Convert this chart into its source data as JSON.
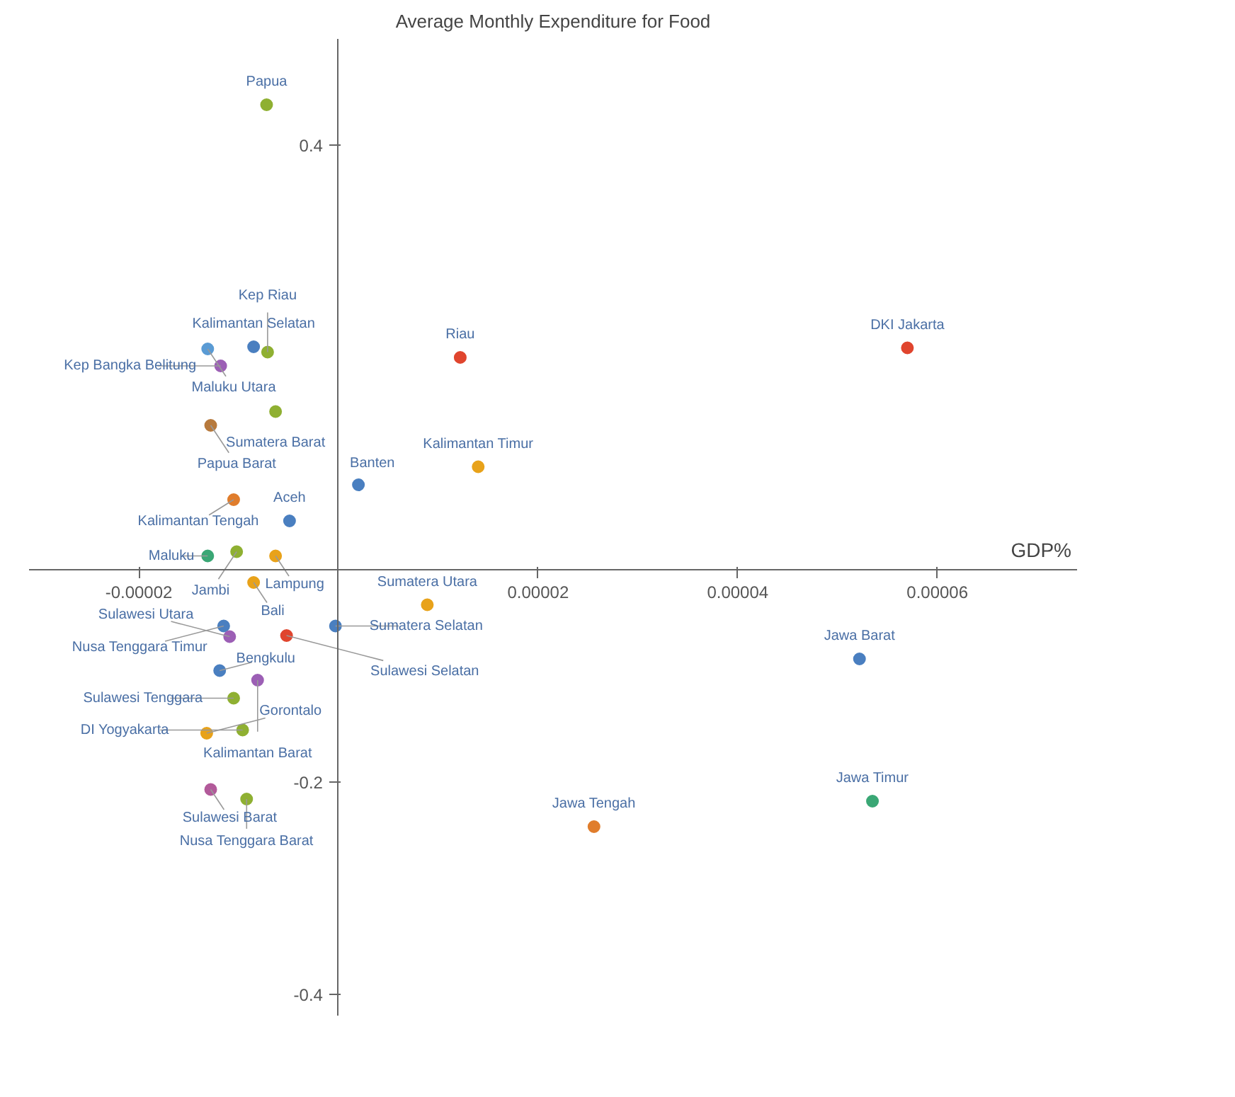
{
  "chart_data": {
    "type": "scatter",
    "title": "Average Monthly Expenditure for Food",
    "xlabel": "GDP%",
    "x": [
      -7.2e-06,
      5.7e-05,
      1.22e-05,
      1.4e-05,
      -8.5e-06,
      -1.31e-05,
      -7.1e-06,
      -1.18e-05,
      -6.3e-06,
      -1.28e-05,
      -1.05e-05,
      2e-06,
      -4.9e-06,
      -1.02e-05,
      -1.31e-05,
      -6.3e-06,
      -8.5e-06,
      8.9e-06,
      -3e-07,
      -5.2e-06,
      -1.15e-05,
      -1.09e-05,
      -8.1e-06,
      -1.19e-05,
      -1.05e-05,
      -9.6e-06,
      -1.32e-05,
      -1.28e-05,
      -9.2e-06,
      2.56e-05,
      5.35e-05,
      5.22e-05
    ],
    "values": [
      0.438,
      0.209,
      0.2,
      0.097,
      0.21,
      0.208,
      0.205,
      0.192,
      0.149,
      0.136,
      0.066,
      0.08,
      0.046,
      0.017,
      0.013,
      0.013,
      -0.012,
      -0.033,
      -0.053,
      -0.062,
      -0.053,
      -0.063,
      -0.104,
      -0.095,
      -0.121,
      -0.151,
      -0.154,
      -0.207,
      -0.216,
      -0.242,
      -0.218,
      -0.084
    ],
    "colors": [
      "#8fb032",
      "#e0452e",
      "#e0452e",
      "#e8a21a",
      "#4a7fc0",
      "#5a9bd4",
      "#8fb032",
      "#9c5fb5",
      "#8fb032",
      "#b77a3d",
      "#e07d2c",
      "#4a7fc0",
      "#4a7fc0",
      "#8fb032",
      "#3aa775",
      "#e8a21a",
      "#e8a21a",
      "#e8a21a",
      "#4a7fc0",
      "#e0452e",
      "#4a7fc0",
      "#9c5fb5",
      "#9c5fb5",
      "#4a7fc0",
      "#8fb032",
      "#8fb032",
      "#e8a21a",
      "#b25a9a",
      "#8fb032",
      "#e07d2c",
      "#3aa775",
      "#4a7fc0"
    ],
    "annotations": [
      {
        "text": "Papua",
        "x": -7.2e-06,
        "y": 0.438
      },
      {
        "text": "DKI Jakarta",
        "x": 5.7e-05,
        "y": 0.209
      },
      {
        "text": "Riau",
        "x": 1.22e-05,
        "y": 0.2
      },
      {
        "text": "Kalimantan Timur",
        "x": 1.4e-05,
        "y": 0.097
      },
      {
        "text": "Kalimantan Selatan",
        "x": -8.5e-06,
        "y": 0.21
      },
      {
        "text": "Maluku Utara",
        "x": -1.31e-05,
        "y": 0.208
      },
      {
        "text": "Kep Riau",
        "x": -7.1e-06,
        "y": 0.205
      },
      {
        "text": "Kep Bangka Belitung",
        "x": -1.18e-05,
        "y": 0.192
      },
      {
        "text": "Sumatera Barat",
        "x": -6.3e-06,
        "y": 0.149
      },
      {
        "text": "Papua Barat",
        "x": -1.28e-05,
        "y": 0.136
      },
      {
        "text": "Kalimantan Tengah",
        "x": -1.05e-05,
        "y": 0.066
      },
      {
        "text": "Banten",
        "x": 2e-06,
        "y": 0.08
      },
      {
        "text": "Aceh",
        "x": -4.9e-06,
        "y": 0.046
      },
      {
        "text": "Jambi",
        "x": -1.02e-05,
        "y": 0.017
      },
      {
        "text": "Maluku",
        "x": -1.31e-05,
        "y": 0.013
      },
      {
        "text": "Lampung",
        "x": -6.3e-06,
        "y": 0.013
      },
      {
        "text": "Bali",
        "x": -8.5e-06,
        "y": -0.012
      },
      {
        "text": "Sumatera Utara",
        "x": 8.9e-06,
        "y": -0.033
      },
      {
        "text": "Sumatera Selatan",
        "x": -3e-07,
        "y": -0.053
      },
      {
        "text": "Sulawesi Selatan",
        "x": -5.2e-06,
        "y": -0.062
      },
      {
        "text": "Nusa Tenggara Timur",
        "x": -1.15e-05,
        "y": -0.053
      },
      {
        "text": "Sulawesi Utara",
        "x": -1.09e-05,
        "y": -0.063
      },
      {
        "text": "Kalimantan Barat",
        "x": -8.1e-06,
        "y": -0.104
      },
      {
        "text": "Bengkulu",
        "x": -1.19e-05,
        "y": -0.095
      },
      {
        "text": "Sulawesi Tenggara",
        "x": -1.05e-05,
        "y": -0.121
      },
      {
        "text": "DI Yogyakarta",
        "x": -9.6e-06,
        "y": -0.151
      },
      {
        "text": "Gorontalo",
        "x": -1.32e-05,
        "y": -0.154
      },
      {
        "text": "Sulawesi Barat",
        "x": -1.28e-05,
        "y": -0.207
      },
      {
        "text": "Nusa Tenggara Barat",
        "x": -9.2e-06,
        "y": -0.216
      },
      {
        "text": "Jawa Tengah",
        "x": 2.56e-05,
        "y": -0.242
      },
      {
        "text": "Jawa Timur",
        "x": 5.35e-05,
        "y": -0.218
      },
      {
        "text": "Jawa Barat",
        "x": 5.22e-05,
        "y": -0.084
      }
    ],
    "xlim": [
      -3.1e-05,
      7.4e-05
    ],
    "ylim": [
      -0.42,
      0.5
    ],
    "xticks": [
      {
        "value": -2e-05,
        "label": "-0.00002"
      },
      {
        "value": 2e-05,
        "label": "0.00002"
      },
      {
        "value": 4e-05,
        "label": "0.00004"
      },
      {
        "value": 6e-05,
        "label": "0.00006"
      }
    ],
    "yticks": [
      -0.4,
      -0.2,
      0.4
    ],
    "marker": "circle",
    "grid": false
  }
}
